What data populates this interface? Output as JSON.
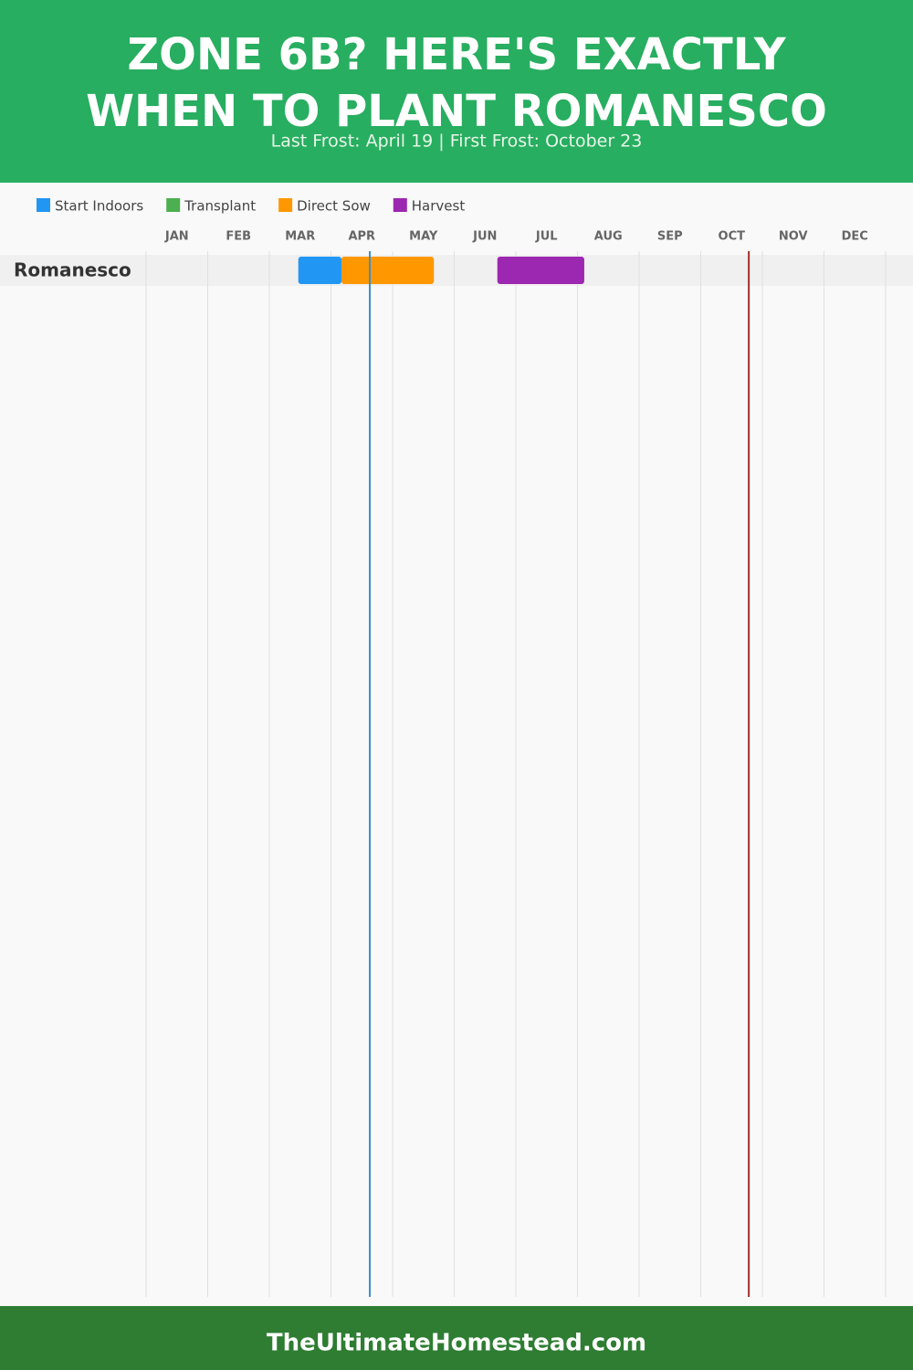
{
  "chart_data": {
    "type": "gantt",
    "title_lines": [
      "ZONE 6B? HERE'S EXACTLY",
      "WHEN TO PLANT ROMANESCO"
    ],
    "subtitle": "Last Frost: April 19 | First Frost: October 23",
    "categories": [
      "JAN",
      "FEB",
      "MAR",
      "APR",
      "MAY",
      "JUN",
      "JUL",
      "AUG",
      "SEP",
      "OCT",
      "NOV",
      "DEC"
    ],
    "xlim": [
      0,
      12
    ],
    "grid": true,
    "rows": [
      "Romanesco"
    ],
    "series": [
      {
        "name": "Start Indoors",
        "color": "#2196f3",
        "bars": [
          {
            "row": 0,
            "start": 2.47,
            "end": 3.17
          }
        ]
      },
      {
        "name": "Transplant",
        "color": "#4caf50",
        "bars": []
      },
      {
        "name": "Direct Sow",
        "color": "#ff9800",
        "bars": [
          {
            "row": 0,
            "start": 3.17,
            "end": 4.67
          }
        ]
      },
      {
        "name": "Harvest",
        "color": "#9c27b0",
        "bars": [
          {
            "row": 0,
            "start": 5.7,
            "end": 7.11
          }
        ]
      }
    ],
    "markers": [
      {
        "value": 3.63,
        "color": "#3a8fd0"
      },
      {
        "value": 9.78,
        "color": "#a0302a"
      }
    ],
    "footer": "TheUltimateHomestead.com"
  }
}
